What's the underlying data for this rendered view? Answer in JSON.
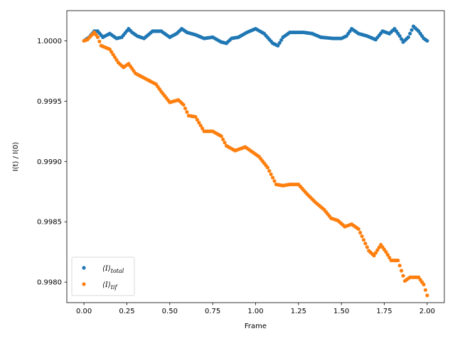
{
  "chart_data": {
    "type": "scatter",
    "xlabel": "Frame",
    "ylabel": "I(t) / I(0)",
    "xlim": [
      -0.1,
      2.1
    ],
    "ylim": [
      0.99783,
      1.00025
    ],
    "xticks": [
      0.0,
      0.25,
      0.5,
      0.75,
      1.0,
      1.25,
      1.5,
      1.75,
      2.0
    ],
    "xtick_labels": [
      "0.00",
      "0.25",
      "0.50",
      "0.75",
      "1.00",
      "1.25",
      "1.50",
      "1.75",
      "2.00"
    ],
    "yticks": [
      0.998,
      0.9985,
      0.999,
      0.9995,
      1.0
    ],
    "ytick_labels": [
      "0.9980",
      "0.9985",
      "0.9990",
      "0.9995",
      "1.0000"
    ],
    "grid": false,
    "legend_position": "lower-left",
    "series": [
      {
        "name": "⟨I⟩total",
        "legend_base": "⟨I⟩",
        "legend_sub": "total",
        "color": "#1f77b4",
        "anchors": [
          [
            0.0,
            1.0
          ],
          [
            0.03,
            1.00003
          ],
          [
            0.06,
            1.00008
          ],
          [
            0.08,
            1.00008
          ],
          [
            0.11,
            1.00003
          ],
          [
            0.15,
            1.00006
          ],
          [
            0.19,
            1.00002
          ],
          [
            0.22,
            1.00003
          ],
          [
            0.26,
            1.0001
          ],
          [
            0.28,
            1.00007
          ],
          [
            0.31,
            1.00004
          ],
          [
            0.35,
            1.00002
          ],
          [
            0.4,
            1.00008
          ],
          [
            0.45,
            1.00008
          ],
          [
            0.5,
            1.00003
          ],
          [
            0.54,
            1.00006
          ],
          [
            0.57,
            1.0001
          ],
          [
            0.6,
            1.00007
          ],
          [
            0.65,
            1.00005
          ],
          [
            0.7,
            1.00002
          ],
          [
            0.75,
            1.00003
          ],
          [
            0.8,
            0.99999
          ],
          [
            0.83,
            0.99998
          ],
          [
            0.86,
            1.00002
          ],
          [
            0.9,
            1.00003
          ],
          [
            0.95,
            1.00007
          ],
          [
            1.0,
            1.0001
          ],
          [
            1.05,
            1.00006
          ],
          [
            1.1,
            0.99998
          ],
          [
            1.13,
            0.99996
          ],
          [
            1.16,
            1.00003
          ],
          [
            1.2,
            1.00007
          ],
          [
            1.28,
            1.00007
          ],
          [
            1.33,
            1.00006
          ],
          [
            1.38,
            1.00003
          ],
          [
            1.45,
            1.00002
          ],
          [
            1.5,
            1.00002
          ],
          [
            1.53,
            1.00004
          ],
          [
            1.56,
            1.0001
          ],
          [
            1.6,
            1.00006
          ],
          [
            1.65,
            1.00004
          ],
          [
            1.7,
            1.00001
          ],
          [
            1.74,
            1.00008
          ],
          [
            1.78,
            1.00006
          ],
          [
            1.81,
            1.0001
          ],
          [
            1.84,
            1.00004
          ],
          [
            1.86,
            0.99999
          ],
          [
            1.89,
            1.00003
          ],
          [
            1.92,
            1.00012
          ],
          [
            1.95,
            1.00008
          ],
          [
            1.98,
            1.00002
          ],
          [
            2.0,
            1.0
          ]
        ]
      },
      {
        "name": "⟨I⟩tif",
        "legend_base": "⟨I⟩",
        "legend_sub": "tif",
        "color": "#ff7f0e",
        "anchors": [
          [
            0.0,
            1.0
          ],
          [
            0.02,
            1.00001
          ],
          [
            0.04,
            1.00004
          ],
          [
            0.06,
            1.00007
          ],
          [
            0.08,
            1.00003
          ],
          [
            0.1,
            0.99996
          ],
          [
            0.15,
            0.99993
          ],
          [
            0.2,
            0.99982
          ],
          [
            0.23,
            0.99978
          ],
          [
            0.26,
            0.99981
          ],
          [
            0.3,
            0.99973
          ],
          [
            0.38,
            0.99967
          ],
          [
            0.42,
            0.99964
          ],
          [
            0.45,
            0.99958
          ],
          [
            0.5,
            0.99949
          ],
          [
            0.55,
            0.99951
          ],
          [
            0.58,
            0.99947
          ],
          [
            0.61,
            0.99938
          ],
          [
            0.65,
            0.99937
          ],
          [
            0.7,
            0.99925
          ],
          [
            0.75,
            0.99925
          ],
          [
            0.8,
            0.99921
          ],
          [
            0.83,
            0.99913
          ],
          [
            0.88,
            0.99909
          ],
          [
            0.94,
            0.99912
          ],
          [
            0.98,
            0.99908
          ],
          [
            1.02,
            0.99904
          ],
          [
            1.07,
            0.99895
          ],
          [
            1.12,
            0.99881
          ],
          [
            1.16,
            0.9988
          ],
          [
            1.2,
            0.99881
          ],
          [
            1.25,
            0.99881
          ],
          [
            1.3,
            0.99873
          ],
          [
            1.35,
            0.99866
          ],
          [
            1.4,
            0.9986
          ],
          [
            1.44,
            0.99853
          ],
          [
            1.48,
            0.99851
          ],
          [
            1.52,
            0.99846
          ],
          [
            1.56,
            0.99848
          ],
          [
            1.6,
            0.99844
          ],
          [
            1.66,
            0.99826
          ],
          [
            1.69,
            0.99822
          ],
          [
            1.73,
            0.99831
          ],
          [
            1.76,
            0.99825
          ],
          [
            1.79,
            0.99818
          ],
          [
            1.83,
            0.99818
          ],
          [
            1.87,
            0.99801
          ],
          [
            1.9,
            0.99804
          ],
          [
            1.95,
            0.99804
          ],
          [
            1.98,
            0.99798
          ],
          [
            2.0,
            0.99789
          ]
        ]
      }
    ]
  }
}
